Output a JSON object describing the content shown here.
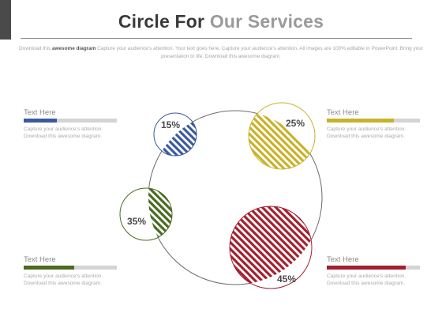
{
  "header": {
    "title_part1": "Circle For",
    "title_part2": "Our Services",
    "subtitle_lead": "Download this ",
    "subtitle_highlight": "awesome diagram",
    "subtitle_rest": " Capture your audience's attention. Your text goes here. Capture your audience's attention. All images are 100% editable in PowerPoint. Bring your presentation to life. Download this awesome diagram."
  },
  "segments": [
    {
      "id": "blue",
      "percent": "15%",
      "value": 15,
      "color": "#3a5a9c"
    },
    {
      "id": "yellow",
      "percent": "25%",
      "value": 25,
      "color": "#c8b22a"
    },
    {
      "id": "green",
      "percent": "35%",
      "value": 35,
      "color": "#4a6b22"
    },
    {
      "id": "red",
      "percent": "45%",
      "value": 45,
      "color": "#a3202e"
    }
  ],
  "callouts": [
    {
      "heading": "Text Here",
      "line1": "Capture your audience's attention.",
      "line2": "Download this awesome diagram.",
      "color": "#3a5a9c",
      "fill": 0.36
    },
    {
      "heading": "Text Here",
      "line1": "Capture your audience's attention.",
      "line2": "Download this awesome diagram.",
      "color": "#c8b22a",
      "fill": 0.72
    },
    {
      "heading": "Text Here",
      "line1": "Capture your audience's attention.",
      "line2": "Download this awesome diagram.",
      "color": "#4a6b22",
      "fill": 0.54
    },
    {
      "heading": "Text Here",
      "line1": "Capture your audience's attention.",
      "line2": "Download this awesome diagram.",
      "color": "#a3202e",
      "fill": 0.85
    }
  ]
}
